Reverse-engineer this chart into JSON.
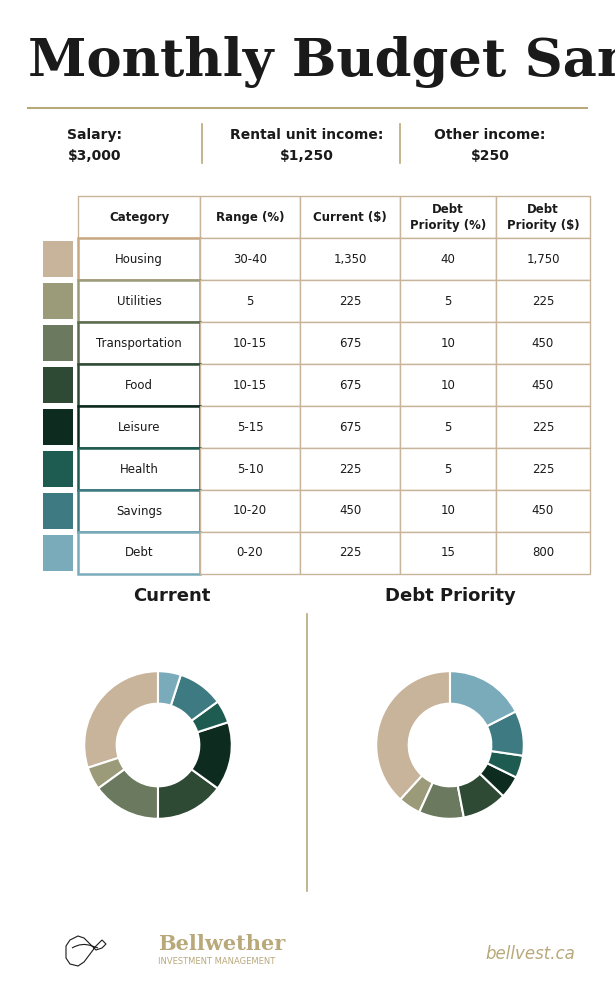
{
  "title": "Monthly Budget Sample",
  "title_fontsize": 38,
  "title_color": "#1a1a1a",
  "bg_color": "#FFFFFF",
  "income": [
    {
      "label": "Salary:",
      "value": "$3,000"
    },
    {
      "label": "Rental unit income:",
      "value": "$1,250"
    },
    {
      "label": "Other income:",
      "value": "$250"
    }
  ],
  "table_headers": [
    "Category",
    "Range (%)",
    "Current ($)",
    "Debt\nPriority (%)",
    "Debt\nPriority ($)"
  ],
  "rows": [
    {
      "category": "Housing",
      "range": "30-40",
      "current": "1,350",
      "debt_pct": "40",
      "debt_val": "1,750",
      "color": "#C8B49A",
      "border": "#C8A882"
    },
    {
      "category": "Utilities",
      "range": "5",
      "current": "225",
      "debt_pct": "5",
      "debt_val": "225",
      "color": "#9B9B7A",
      "border": "#9B9B7A"
    },
    {
      "category": "Transportation",
      "range": "10-15",
      "current": "675",
      "debt_pct": "10",
      "debt_val": "450",
      "color": "#6B7A5E",
      "border": "#5A6B4E"
    },
    {
      "category": "Food",
      "range": "10-15",
      "current": "675",
      "debt_pct": "10",
      "debt_val": "450",
      "color": "#2E4A35",
      "border": "#2E4A35"
    },
    {
      "category": "Leisure",
      "range": "5-15",
      "current": "675",
      "debt_pct": "5",
      "debt_val": "225",
      "color": "#0D2B1E",
      "border": "#0D2B1E"
    },
    {
      "category": "Health",
      "range": "5-10",
      "current": "225",
      "debt_pct": "5",
      "debt_val": "225",
      "color": "#1E5C52",
      "border": "#1E5C52"
    },
    {
      "category": "Savings",
      "range": "10-20",
      "current": "450",
      "debt_pct": "10",
      "debt_val": "450",
      "color": "#3D7A82",
      "border": "#3D7A82"
    },
    {
      "category": "Debt",
      "range": "0-20",
      "current": "225",
      "debt_pct": "15",
      "debt_val": "800",
      "color": "#7AABBA",
      "border": "#7AABBA"
    }
  ],
  "current_pie": [
    1350,
    225,
    675,
    675,
    675,
    225,
    450,
    225
  ],
  "debt_pie": [
    1750,
    225,
    450,
    450,
    225,
    225,
    450,
    800
  ],
  "pie_colors": [
    "#C8B49A",
    "#9B9B7A",
    "#6B7A5E",
    "#2E4A35",
    "#0D2B1E",
    "#1E5C52",
    "#3D7A82",
    "#7AABBA"
  ],
  "separator_color": "#B8A87A",
  "cell_border_color": "#C8B49A",
  "header_border_color": "#C8B49A",
  "text_color": "#1a1a1a",
  "bellwether_color": "#B8A87A",
  "footer_text": "bellvest.ca"
}
